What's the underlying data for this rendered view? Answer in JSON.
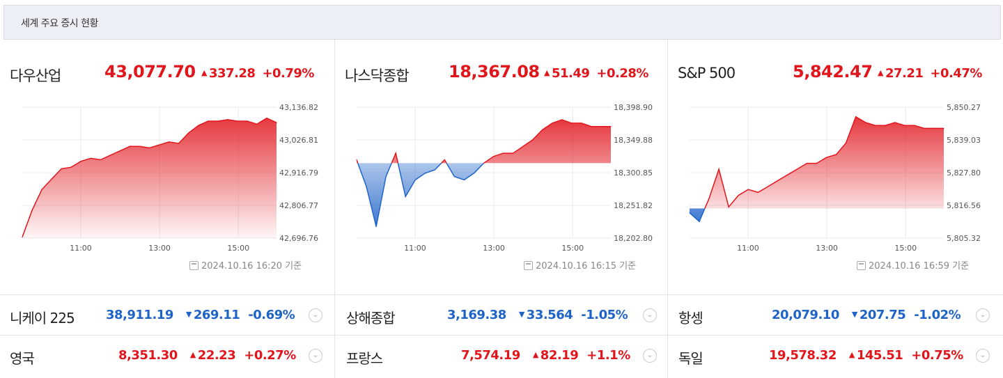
{
  "header": {
    "title": "세계 주요 증시 현황"
  },
  "colors": {
    "up": "#e1161d",
    "down": "#1e63c8"
  },
  "panels": [
    {
      "name": "다우산업",
      "price": "43,077.70",
      "change": "337.28",
      "percent": "+0.79%",
      "direction": "up",
      "timestamp": "2024.10.16 16:20 기준",
      "x_ticks": [
        "11:00",
        "13:00",
        "15:00"
      ],
      "y_ticks": [
        "43,136.82",
        "43,026.81",
        "42,916.79",
        "42,806.77",
        "42,696.76"
      ]
    },
    {
      "name": "나스닥종합",
      "price": "18,367.08",
      "change": "51.49",
      "percent": "+0.28%",
      "direction": "up",
      "timestamp": "2024.10.16 16:15 기준",
      "x_ticks": [
        "11:00",
        "13:00",
        "15:00"
      ],
      "y_ticks": [
        "18,398.90",
        "18,349.88",
        "18,300.85",
        "18,251.82",
        "18,202.80"
      ]
    },
    {
      "name": "S&P 500",
      "price": "5,842.47",
      "change": "27.21",
      "percent": "+0.47%",
      "direction": "up",
      "timestamp": "2024.10.16 16:59 기준",
      "x_ticks": [
        "11:00",
        "13:00",
        "15:00"
      ],
      "y_ticks": [
        "5,850.27",
        "5,839.03",
        "5,827.80",
        "5,816.56",
        "5,805.32"
      ]
    }
  ],
  "rows": [
    {
      "name": "니케이 225",
      "price": "38,911.19",
      "change": "269.11",
      "percent": "-0.69%",
      "direction": "down"
    },
    {
      "name": "상해종합",
      "price": "3,169.38",
      "change": "33.564",
      "percent": "-1.05%",
      "direction": "down"
    },
    {
      "name": "항셍",
      "price": "20,079.10",
      "change": "207.75",
      "percent": "-1.02%",
      "direction": "down"
    },
    {
      "name": "영국",
      "price": "8,351.30",
      "change": "22.23",
      "percent": "+0.27%",
      "direction": "up"
    },
    {
      "name": "프랑스",
      "price": "7,574.19",
      "change": "82.19",
      "percent": "+1.1%",
      "direction": "up"
    },
    {
      "name": "독일",
      "price": "19,578.32",
      "change": "145.51",
      "percent": "+0.75%",
      "direction": "up"
    }
  ],
  "icons": {
    "toggle": "chevron-down-icon",
    "calendar": "calendar-icon",
    "up_arrow": "▲",
    "down_arrow": "▼"
  },
  "chart_data": [
    {
      "type": "area",
      "title": "다우산업",
      "ylim": [
        42696.76,
        43136.82
      ],
      "baseline": 42696.76,
      "x": [
        "09:30",
        "09:45",
        "10:00",
        "10:15",
        "10:30",
        "10:45",
        "11:00",
        "11:15",
        "11:30",
        "11:45",
        "12:00",
        "12:15",
        "12:30",
        "12:45",
        "13:00",
        "13:15",
        "13:30",
        "13:45",
        "14:00",
        "14:15",
        "14:30",
        "14:45",
        "15:00",
        "15:15",
        "15:30",
        "15:45",
        "16:00"
      ],
      "values": [
        42700,
        42790,
        42860,
        42895,
        42930,
        42935,
        42955,
        42965,
        42960,
        42975,
        42990,
        43005,
        43005,
        43000,
        43010,
        43020,
        43015,
        43050,
        43075,
        43090,
        43090,
        43095,
        43090,
        43090,
        43080,
        43100,
        43085
      ]
    },
    {
      "type": "area",
      "title": "나스닥종합",
      "ylim": [
        18202.8,
        18398.9
      ],
      "baseline": 18315,
      "x": [
        "09:30",
        "09:45",
        "10:00",
        "10:15",
        "10:30",
        "10:45",
        "11:00",
        "11:15",
        "11:30",
        "11:45",
        "12:00",
        "12:15",
        "12:30",
        "12:45",
        "13:00",
        "13:15",
        "13:30",
        "13:45",
        "14:00",
        "14:15",
        "14:30",
        "14:45",
        "15:00",
        "15:15",
        "15:30",
        "15:45",
        "16:00"
      ],
      "values": [
        18320,
        18280,
        18220,
        18295,
        18330,
        18265,
        18290,
        18300,
        18305,
        18320,
        18295,
        18290,
        18300,
        18315,
        18325,
        18330,
        18330,
        18340,
        18350,
        18365,
        18375,
        18380,
        18375,
        18375,
        18370,
        18370,
        18370
      ]
    },
    {
      "type": "area",
      "title": "S&P 500",
      "ylim": [
        5805.32,
        5850.27
      ],
      "baseline": 5815.5,
      "x": [
        "09:30",
        "09:45",
        "10:00",
        "10:15",
        "10:30",
        "10:45",
        "11:00",
        "11:15",
        "11:30",
        "11:45",
        "12:00",
        "12:15",
        "12:30",
        "12:45",
        "13:00",
        "13:15",
        "13:30",
        "13:45",
        "14:00",
        "14:15",
        "14:30",
        "14:45",
        "15:00",
        "15:15",
        "15:30",
        "15:45",
        "16:00"
      ],
      "values": [
        5814,
        5811,
        5819,
        5829,
        5816,
        5820,
        5822,
        5821,
        5823,
        5825,
        5827,
        5829,
        5831,
        5831,
        5833,
        5834,
        5838,
        5847,
        5845,
        5844,
        5844,
        5845,
        5844,
        5844,
        5843,
        5843,
        5843
      ]
    }
  ]
}
